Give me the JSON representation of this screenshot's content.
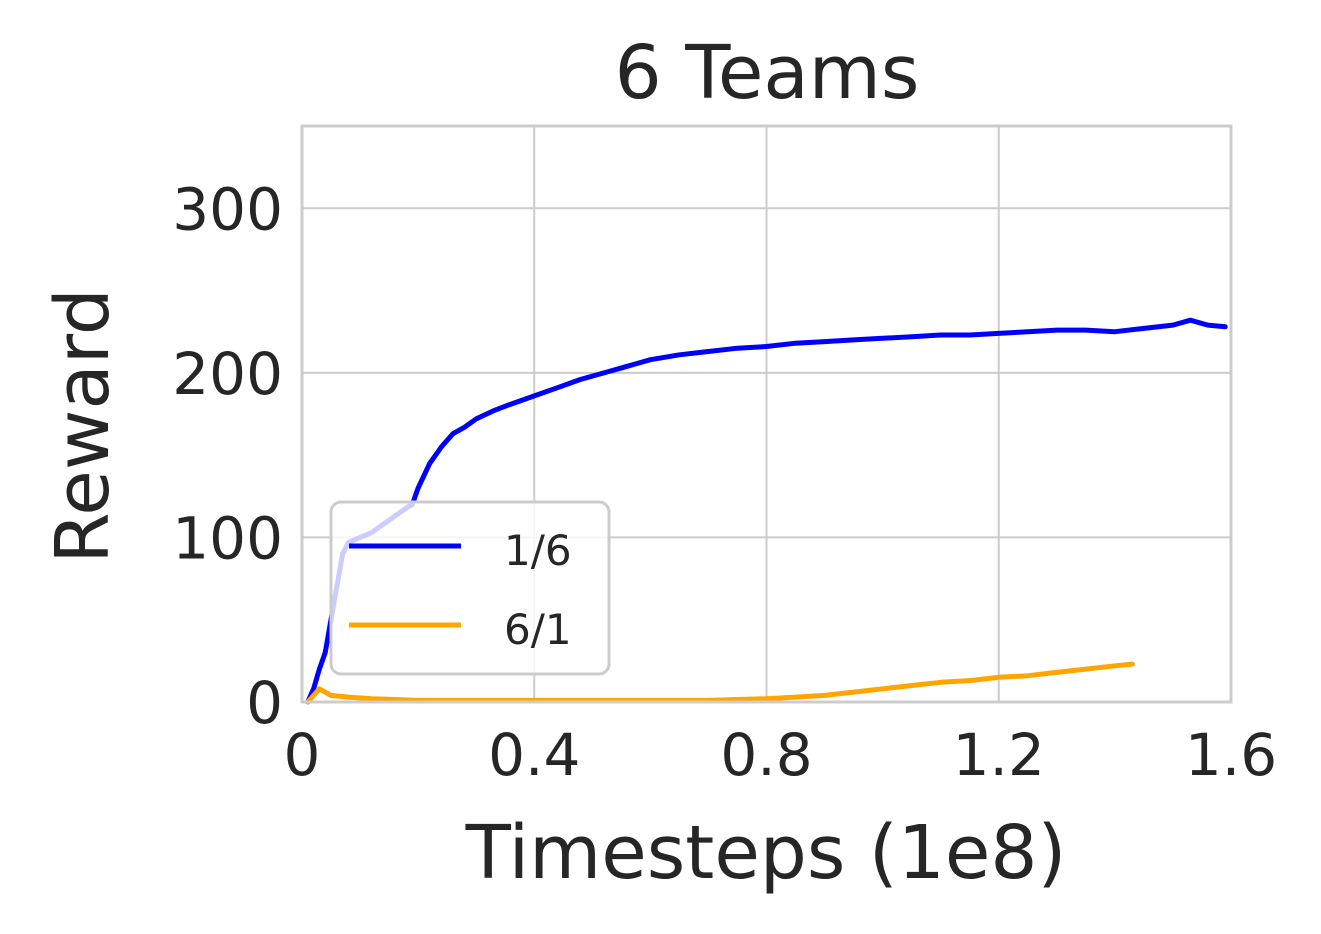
{
  "chart_data": {
    "type": "line",
    "title": "6 Teams",
    "xlabel": "Timesteps (1e8)",
    "ylabel": "Reward",
    "xlim": [
      0,
      1.6
    ],
    "ylim": [
      0,
      350
    ],
    "xticks": [
      0,
      0.4,
      0.8,
      1.2,
      1.6
    ],
    "xtick_labels": [
      "0",
      "0.4",
      "0.8",
      "1.2",
      "1.6"
    ],
    "yticks": [
      0,
      100,
      200,
      300
    ],
    "ytick_labels": [
      "0",
      "100",
      "200",
      "300"
    ],
    "grid": true,
    "legend": {
      "placement": "lower-left"
    },
    "series": [
      {
        "name": "1/6",
        "color": "#0000ff",
        "x": [
          0.01,
          0.02,
          0.03,
          0.04,
          0.05,
          0.06,
          0.07,
          0.08,
          0.1,
          0.12,
          0.14,
          0.16,
          0.18,
          0.19,
          0.2,
          0.22,
          0.24,
          0.26,
          0.28,
          0.3,
          0.33,
          0.36,
          0.4,
          0.44,
          0.48,
          0.52,
          0.56,
          0.6,
          0.65,
          0.7,
          0.75,
          0.8,
          0.85,
          0.9,
          0.95,
          1.0,
          1.05,
          1.1,
          1.15,
          1.2,
          1.25,
          1.3,
          1.35,
          1.4,
          1.45,
          1.5,
          1.53,
          1.56,
          1.59
        ],
        "values": [
          0,
          8,
          20,
          30,
          50,
          70,
          90,
          97,
          100,
          103,
          108,
          113,
          118,
          120,
          130,
          145,
          155,
          163,
          167,
          172,
          177,
          181,
          186,
          191,
          196,
          200,
          204,
          208,
          211,
          213,
          215,
          216,
          218,
          219,
          220,
          221,
          222,
          223,
          223,
          224,
          225,
          226,
          226,
          225,
          227,
          229,
          232,
          229,
          228
        ]
      },
      {
        "name": "6/1",
        "color": "#ffa500",
        "x": [
          0.01,
          0.02,
          0.03,
          0.04,
          0.05,
          0.08,
          0.12,
          0.2,
          0.3,
          0.4,
          0.5,
          0.6,
          0.7,
          0.8,
          0.85,
          0.9,
          0.95,
          1.0,
          1.05,
          1.1,
          1.15,
          1.2,
          1.25,
          1.3,
          1.35,
          1.4,
          1.43
        ],
        "values": [
          0,
          4,
          8,
          6,
          4,
          3,
          2,
          1,
          1,
          1,
          1,
          1,
          1,
          2,
          3,
          4,
          6,
          8,
          10,
          12,
          13,
          15,
          16,
          18,
          20,
          22,
          23
        ]
      }
    ]
  }
}
